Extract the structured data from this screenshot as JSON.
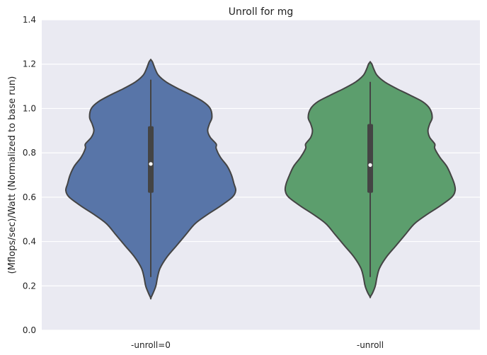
{
  "chart_data": {
    "type": "violin",
    "title": "Unroll for mg",
    "xlabel": "",
    "ylabel": "(Mflops/sec)/Watt (Normalized to base run)",
    "ylim": [
      0.0,
      1.4
    ],
    "yticks": [
      "0.0",
      "0.2",
      "0.4",
      "0.6",
      "0.8",
      "1.0",
      "1.2",
      "1.4"
    ],
    "categories": [
      "-unroll=0",
      "-unroll"
    ],
    "grid": true,
    "series": [
      {
        "category": "-unroll=0",
        "color": "#5875a8",
        "median": 0.75,
        "q1": 0.62,
        "q3": 0.92,
        "whisker_low": 0.24,
        "whisker_high": 1.13,
        "profile": [
          [
            0.145,
            0.0
          ],
          [
            0.17,
            0.03
          ],
          [
            0.2,
            0.06
          ],
          [
            0.24,
            0.08
          ],
          [
            0.28,
            0.11
          ],
          [
            0.33,
            0.19
          ],
          [
            0.38,
            0.3
          ],
          [
            0.43,
            0.41
          ],
          [
            0.48,
            0.52
          ],
          [
            0.52,
            0.66
          ],
          [
            0.56,
            0.82
          ],
          [
            0.6,
            0.96
          ],
          [
            0.63,
            1.0
          ],
          [
            0.66,
            0.98
          ],
          [
            0.7,
            0.95
          ],
          [
            0.74,
            0.9
          ],
          [
            0.78,
            0.82
          ],
          [
            0.82,
            0.77
          ],
          [
            0.84,
            0.77
          ],
          [
            0.87,
            0.7
          ],
          [
            0.9,
            0.67
          ],
          [
            0.93,
            0.69
          ],
          [
            0.96,
            0.72
          ],
          [
            1.0,
            0.7
          ],
          [
            1.03,
            0.62
          ],
          [
            1.06,
            0.48
          ],
          [
            1.09,
            0.32
          ],
          [
            1.12,
            0.18
          ],
          [
            1.15,
            0.09
          ],
          [
            1.18,
            0.05
          ],
          [
            1.21,
            0.02
          ],
          [
            1.22,
            0.0
          ]
        ]
      },
      {
        "category": "-unroll",
        "color": "#5c9e6d",
        "median": 0.745,
        "q1": 0.62,
        "q3": 0.93,
        "whisker_low": 0.24,
        "whisker_high": 1.12,
        "profile": [
          [
            0.15,
            0.0
          ],
          [
            0.17,
            0.03
          ],
          [
            0.2,
            0.06
          ],
          [
            0.24,
            0.08
          ],
          [
            0.28,
            0.11
          ],
          [
            0.33,
            0.19
          ],
          [
            0.38,
            0.3
          ],
          [
            0.43,
            0.41
          ],
          [
            0.48,
            0.52
          ],
          [
            0.52,
            0.66
          ],
          [
            0.56,
            0.82
          ],
          [
            0.6,
            0.96
          ],
          [
            0.63,
            1.0
          ],
          [
            0.66,
            0.99
          ],
          [
            0.7,
            0.95
          ],
          [
            0.74,
            0.9
          ],
          [
            0.78,
            0.82
          ],
          [
            0.82,
            0.76
          ],
          [
            0.84,
            0.76
          ],
          [
            0.87,
            0.7
          ],
          [
            0.9,
            0.68
          ],
          [
            0.93,
            0.7
          ],
          [
            0.96,
            0.73
          ],
          [
            1.0,
            0.7
          ],
          [
            1.03,
            0.62
          ],
          [
            1.06,
            0.47
          ],
          [
            1.09,
            0.31
          ],
          [
            1.12,
            0.17
          ],
          [
            1.15,
            0.08
          ],
          [
            1.18,
            0.04
          ],
          [
            1.2,
            0.02
          ],
          [
            1.21,
            0.0
          ]
        ]
      }
    ]
  }
}
